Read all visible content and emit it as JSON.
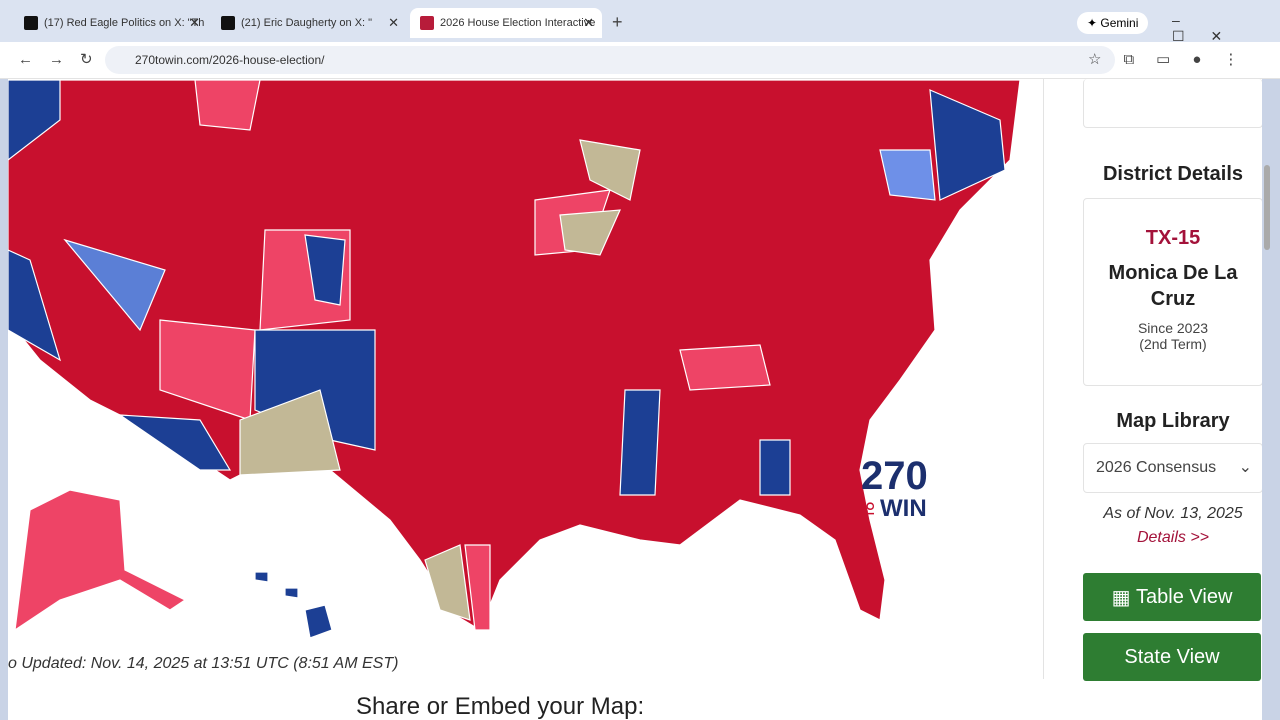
{
  "browser": {
    "tabs": [
      "(17) Red Eagle Politics on X: \"Th",
      "(21) Eric Daugherty on X: \"",
      "2026 House Election Interactive"
    ],
    "gemini": "Gemini",
    "url": "270towin.com/2026-house-election/"
  },
  "map": {
    "logo_number": "270",
    "logo_to": "TO",
    "logo_win": "WIN",
    "updated": "o Updated: Nov. 14, 2025 at 13:51 UTC (8:51 AM EST)",
    "share_heading": "Share or Embed your Map:"
  },
  "sidebar": {
    "district_heading": "District Details",
    "district": "TX-15",
    "member": "Monica De La Cruz",
    "since": "Since 2023",
    "term": "(2nd Term)",
    "library_heading": "Map Library",
    "library_select": "2026 Consensus",
    "as_of": "As of Nov. 13, 2025",
    "details_link": "Details >>",
    "table_button": "Table View",
    "state_button": "State View"
  }
}
